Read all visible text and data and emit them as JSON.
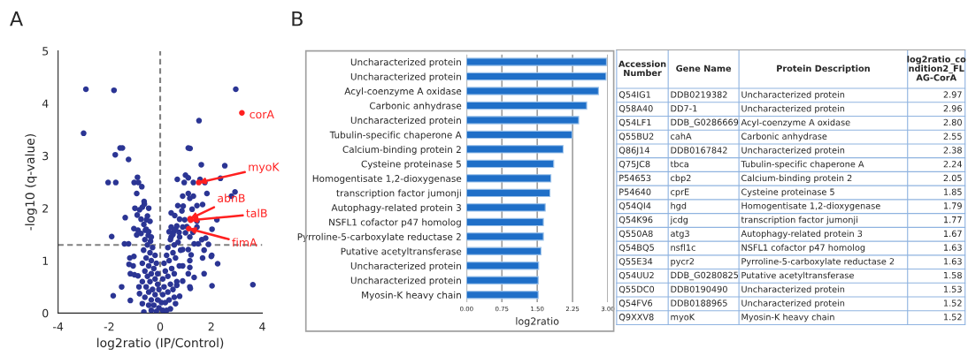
{
  "chart_data": [
    {
      "type": "scatter",
      "title": "A",
      "xlabel": "log2ratio (IP/Control)",
      "ylabel": "-log10 (q-value)",
      "xlim": [
        -4,
        4
      ],
      "xticks": [
        {
          "value": -4,
          "label": "-4"
        },
        {
          "value": -2,
          "label": "-2"
        },
        0,
        2,
        4
      ],
      "ylim": [
        0,
        5
      ],
      "yticks": [
        0,
        1,
        2,
        3,
        4,
        5
      ],
      "marker": "circle",
      "grid": false,
      "ref_lines": [
        {
          "axis": "x",
          "value": 0,
          "color": "#808080",
          "line_style": "dashed"
        },
        {
          "axis": "y",
          "value": 1.3,
          "color": "#808080",
          "line_style": "dashed"
        }
      ],
      "series": [
        {
          "color": "#2b3594",
          "x": [
            -2.91,
            -1.81,
            -3.0,
            -1.57,
            -1.48,
            -1.76,
            -1.24,
            -2.04,
            -1.74,
            -0.89,
            -1.02,
            -0.85,
            -0.72,
            -0.92,
            -0.63,
            -0.62,
            -0.99,
            -0.81,
            -0.7,
            -1.37,
            -0.9,
            -0.75,
            -0.54,
            -1.9,
            -1.4,
            -1.24,
            -1.03,
            -0.87,
            -0.92,
            -0.75,
            -0.64,
            -0.58,
            -0.47,
            -0.38,
            -1.03,
            -1.19,
            -1.22,
            -1.06,
            -1.17,
            -1.01,
            -0.87,
            -1.51,
            -1.84,
            -1.17,
            -0.83,
            -0.81,
            -0.7,
            -0.64,
            -0.55,
            -0.45,
            -0.35,
            -0.6,
            -0.5,
            -0.3,
            -0.65,
            -0.4,
            -0.2,
            -0.55,
            -0.35,
            -0.7,
            -0.15,
            -0.45,
            -0.25,
            -0.6,
            -0.35,
            -0.1,
            -0.5,
            -0.2,
            -0.7,
            -0.4,
            -0.1,
            -0.55,
            -0.3,
            -0.05,
            -0.45,
            -0.2,
            -0.6,
            -0.35,
            -0.1,
            -0.45,
            -0.25,
            -0.05,
            -0.35,
            -0.15,
            -0.4,
            -0.5,
            -0.45,
            2.96,
            1.52,
            1.1,
            1.17,
            1.61,
            2.53,
            0.99,
            1.1,
            0.67,
            0.94,
            1.3,
            1.56,
            1.75,
            2.36,
            1.83,
            2.79,
            2.93,
            1.1,
            1.3,
            0.88,
            1.16,
            1.44,
            1.66,
            0.69,
            0.9,
            1.25,
            0.43,
            0.57,
            0.85,
            2.22,
            0.76,
            0.96,
            1.44,
            0.43,
            0.65,
            0.88,
            1.04,
            1.44,
            2.03,
            0.54,
            0.74,
            0.99,
            1.28,
            1.78,
            1.63,
            0.43,
            0.76,
            1.16,
            1.33,
            1.49,
            1.89,
            1.72,
            0.88,
            1.1,
            2.0,
            2.02,
            1.66,
            2.25,
            1.21,
            1.16,
            0.88,
            1.16,
            1.72,
            1.1,
            1.33,
            3.63,
            2.03,
            1.16,
            1.18,
            0.88,
            0.65,
            0.76,
            0.6,
            0.1,
            0.25,
            0.4,
            0.05,
            0.2,
            0.35,
            0.55,
            0.1,
            0.3,
            0.5,
            0.15,
            0.4,
            0.65,
            0.1,
            0.3,
            0.55,
            0.2,
            0.45,
            0.75,
            0.15,
            0.35,
            0.6,
            0.25,
            0.5,
            0.8,
            0.3,
            0.55,
            0.4,
            0.7,
            0.5,
            0.35,
            0.6
          ],
          "values": [
            4.27,
            4.25,
            3.43,
            3.15,
            3.15,
            3.02,
            2.93,
            2.49,
            2.49,
            2.59,
            2.49,
            2.49,
            2.41,
            2.28,
            2.13,
            2.08,
            2.0,
            1.97,
            2.02,
            1.82,
            1.87,
            1.79,
            1.78,
            1.46,
            1.32,
            1.32,
            1.61,
            1.58,
            1.49,
            1.52,
            1.69,
            1.58,
            1.48,
            1.37,
            1.08,
            1.05,
            0.93,
            0.9,
            0.75,
            0.73,
            0.71,
            0.5,
            0.33,
            0.24,
            0.5,
            0.37,
            0.18,
            0.02,
            1.6,
            1.55,
            1.45,
            1.4,
            1.3,
            1.25,
            1.2,
            1.15,
            1.1,
            1.05,
            1.0,
            0.95,
            0.95,
            0.9,
            0.85,
            0.8,
            0.75,
            0.75,
            0.7,
            0.65,
            0.6,
            0.6,
            0.55,
            0.5,
            0.45,
            0.45,
            0.4,
            0.35,
            0.3,
            0.25,
            0.25,
            0.15,
            0.15,
            0.1,
            0.05,
            0.03,
            1.75,
            1.85,
            2.0,
            4.27,
            3.67,
            3.15,
            3.14,
            2.83,
            2.81,
            2.63,
            2.58,
            2.55,
            2.49,
            2.49,
            2.55,
            2.49,
            2.57,
            2.28,
            2.23,
            2.31,
            2.28,
            2.23,
            2.23,
            2.19,
            2.05,
            2.07,
            2.05,
            2.04,
            1.98,
            1.91,
            1.86,
            1.95,
            1.78,
            1.79,
            1.78,
            1.75,
            1.64,
            1.66,
            1.64,
            1.65,
            1.64,
            1.6,
            1.56,
            1.54,
            1.53,
            1.54,
            1.43,
            1.4,
            1.45,
            1.45,
            1.45,
            1.32,
            1.32,
            1.31,
            1.2,
            1.21,
            1.21,
            1.08,
            1.1,
            1.05,
            0.94,
            1.11,
            1.0,
            0.9,
            0.87,
            0.75,
            0.75,
            0.68,
            0.54,
            0.52,
            0.5,
            0.47,
            0.61,
            0.53,
            0.32,
            0.18,
            0.05,
            0.05,
            0.08,
            0.2,
            0.2,
            0.25,
            0.3,
            0.35,
            0.4,
            0.45,
            0.5,
            0.55,
            0.6,
            0.65,
            0.7,
            0.75,
            0.8,
            0.85,
            0.9,
            0.95,
            1.0,
            1.05,
            1.1,
            1.15,
            1.2,
            1.25,
            1.3,
            1.4,
            1.35,
            1.5,
            1.55,
            1.6
          ]
        },
        {
          "color": "#ff2020",
          "x": [
            3.2,
            1.51,
            1.17,
            1.19,
            1.12
          ],
          "values": [
            3.82,
            2.49,
            1.8,
            1.77,
            1.61
          ]
        }
      ],
      "annotations": [
        {
          "text": "corA",
          "x": 3.2,
          "y": 3.82
        },
        {
          "text": "myoK",
          "x": 1.51,
          "y": 2.49
        },
        {
          "text": "abnB",
          "x": 1.17,
          "y": 1.8
        },
        {
          "text": "talB",
          "x": 1.19,
          "y": 1.77
        },
        {
          "text": "fimA",
          "x": 1.12,
          "y": 1.61
        }
      ]
    },
    {
      "type": "bar",
      "title": "B",
      "orientation": "horizontal",
      "xlabel": "log2ratio",
      "grid": "x",
      "xlim": [
        0,
        3.0
      ],
      "xticks": [
        {
          "value": 0,
          "label": "0.00"
        },
        {
          "value": 0.75,
          "label": "0.75"
        },
        {
          "value": 1.5,
          "label": "1.50"
        },
        {
          "value": 2.25,
          "label": "2.25"
        },
        {
          "value": 3.0,
          "label": "3.00"
        }
      ],
      "categories": [
        "Uncharacterized protein",
        "Uncharacterized protein",
        "Acyl-coenzyme A oxidase",
        "Carbonic anhydrase",
        "Uncharacterized protein",
        "Tubulin-specific chaperone A",
        "Calcium-binding protein 2",
        "Cysteine proteinase 5",
        "Homogentisate 1,2-dioxygenase",
        "transcription factor jumonji",
        "Autophagy-related protein 3",
        "NSFL1 cofactor p47 homolog",
        "Pyrroline-5-carboxylate reductase 2",
        "Putative acetyltransferase",
        "Uncharacterized protein",
        "Uncharacterized protein",
        "Myosin-K heavy chain"
      ],
      "values": [
        2.97,
        2.96,
        2.8,
        2.55,
        2.38,
        2.24,
        2.05,
        1.85,
        1.79,
        1.77,
        1.67,
        1.63,
        1.63,
        1.58,
        1.53,
        1.52,
        1.52
      ],
      "color": "#1f6fc8"
    },
    {
      "type": "other",
      "categories": [
        "Accession\nNumber",
        "Gene Name",
        "Protein Description",
        "log2ratio_co\nndition2_FL\nAG-CorA"
      ],
      "annotations": [
        "Q54IG1",
        "DDB0219382",
        "Uncharacterized protein",
        "2.97",
        "Q58A40",
        "DD7-1",
        "Uncharacterized protein",
        "2.96",
        "Q54LF1",
        "DDB_G0286669",
        "Acyl-coenzyme A oxidase",
        "2.80",
        "Q55BU2",
        "cahA",
        "Carbonic anhydrase",
        "2.55",
        "Q86J14",
        "DDB0167842",
        "Uncharacterized protein",
        "2.38",
        "Q75JC8",
        "tbca",
        "Tubulin-specific chaperone A",
        "2.24",
        "P54653",
        "cbp2",
        "Calcium-binding protein 2",
        "2.05",
        "P54640",
        "cprE",
        "Cysteine proteinase 5",
        "1.85",
        "Q54QI4",
        "hgd",
        "Homogentisate 1,2-dioxygenase",
        "1.79",
        "Q54K96",
        "jcdg",
        "transcription factor jumonji",
        "1.77",
        "Q550A8",
        "atg3",
        "Autophagy-related protein 3",
        "1.67",
        "Q54BQ5",
        "nsfl1c",
        "NSFL1 cofactor p47 homolog",
        "1.63",
        "Q55E34",
        "pycr2",
        "Pyrroline-5-carboxylate reductase 2",
        "1.63",
        "Q54UU2",
        "DDB_G0280825",
        "Putative acetyltransferase",
        "1.58",
        "Q55DC0",
        "DDB0190490",
        "Uncharacterized protein",
        "1.53",
        "Q54FV6",
        "DDB0188965",
        "Uncharacterized protein",
        "1.52",
        "Q9XXV8",
        "myoK",
        "Myosin-K heavy chain",
        "1.52"
      ]
    }
  ]
}
